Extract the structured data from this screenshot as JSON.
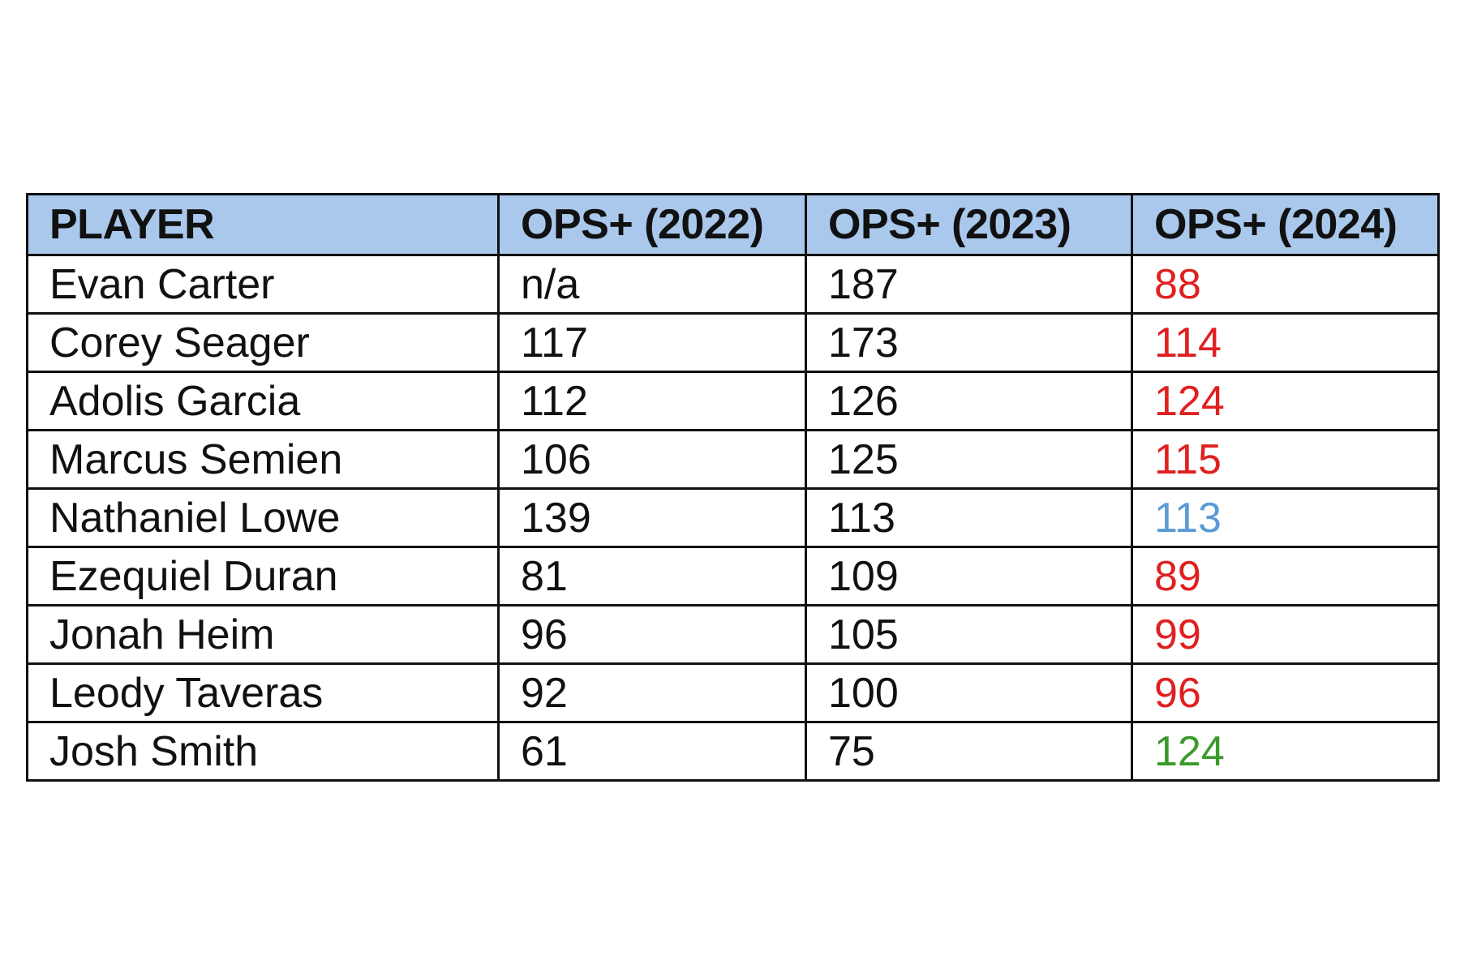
{
  "colors": {
    "header_bg": "#a9c8ec",
    "decline": "#e02020",
    "flat": "#5b9bd5",
    "improve": "#3a9a2a",
    "text": "#111111"
  },
  "chart_data": {
    "type": "table",
    "columns": [
      "PLAYER",
      "OPS+ (2022)",
      "OPS+ (2023)",
      "OPS+ (2024)"
    ],
    "rows": [
      {
        "player": "Evan Carter",
        "ops_2022": "n/a",
        "ops_2023": "187",
        "ops_2024": "88",
        "trend_color": "#e02020"
      },
      {
        "player": "Corey Seager",
        "ops_2022": "117",
        "ops_2023": "173",
        "ops_2024": "114",
        "trend_color": "#e02020"
      },
      {
        "player": "Adolis Garcia",
        "ops_2022": "112",
        "ops_2023": "126",
        "ops_2024": "124",
        "trend_color": "#e02020"
      },
      {
        "player": "Marcus Semien",
        "ops_2022": "106",
        "ops_2023": "125",
        "ops_2024": "115",
        "trend_color": "#e02020"
      },
      {
        "player": "Nathaniel Lowe",
        "ops_2022": "139",
        "ops_2023": "113",
        "ops_2024": "113",
        "trend_color": "#5b9bd5"
      },
      {
        "player": "Ezequiel Duran",
        "ops_2022": "81",
        "ops_2023": "109",
        "ops_2024": "89",
        "trend_color": "#e02020"
      },
      {
        "player": "Jonah Heim",
        "ops_2022": "96",
        "ops_2023": "105",
        "ops_2024": "99",
        "trend_color": "#e02020"
      },
      {
        "player": "Leody Taveras",
        "ops_2022": "92",
        "ops_2023": "100",
        "ops_2024": "96",
        "trend_color": "#e02020"
      },
      {
        "player": "Josh Smith",
        "ops_2022": "61",
        "ops_2023": "75",
        "ops_2024": "124",
        "trend_color": "#3a9a2a"
      }
    ]
  }
}
